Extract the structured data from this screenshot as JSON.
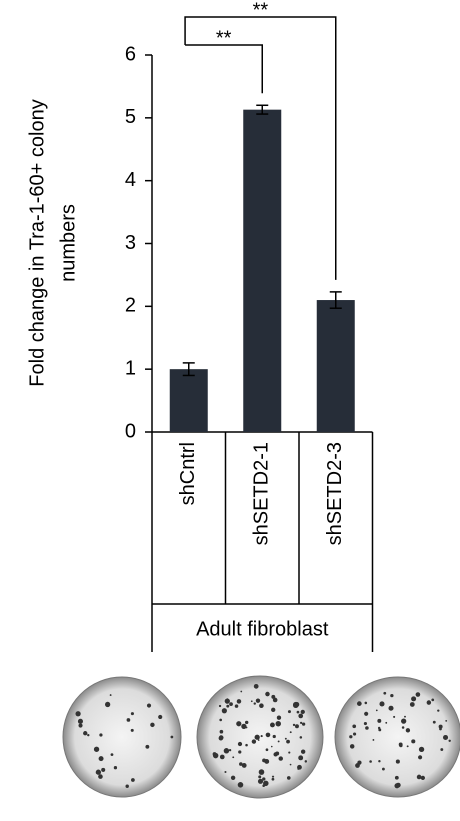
{
  "chart_data": {
    "type": "bar",
    "ylabel": [
      "Fold change in Tra-1-60+ colony",
      "numbers"
    ],
    "categories": [
      "shCntrl",
      "shSETD2-1",
      "shSETD2-3"
    ],
    "values": [
      1.0,
      5.13,
      2.1
    ],
    "errors": [
      0.1,
      0.07,
      0.13
    ],
    "color": "#262d38",
    "ylim": [
      0,
      6
    ],
    "yticks": [
      0,
      1,
      2,
      3,
      4,
      5,
      6
    ],
    "group_label": "Adult fibroblast",
    "annotations": [
      "**",
      "**"
    ]
  }
}
